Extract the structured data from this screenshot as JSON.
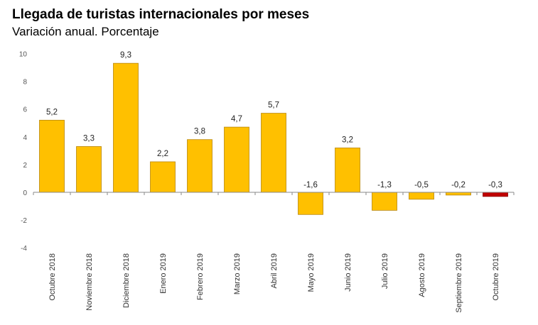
{
  "chart_data": {
    "type": "bar",
    "title": "Llegada de turistas internacionales por meses",
    "subtitle": "Variación anual. Porcentaje",
    "xlabel": "",
    "ylabel": "",
    "ylim": [
      -4,
      10
    ],
    "yticks": [
      -4,
      -2,
      0,
      2,
      4,
      6,
      8,
      10
    ],
    "grid": false,
    "categories": [
      "Octubre 2018",
      "Noviembre 2018",
      "Diciembre 2018",
      "Enero 2019",
      "Febrero 2019",
      "Marzo 2019",
      "Abril 2019",
      "Mayo 2019",
      "Junio 2019",
      "Julio 2019",
      "Agosto 2019",
      "Septiembre 2019",
      "Octubre 2019"
    ],
    "values": [
      5.2,
      3.3,
      9.3,
      2.2,
      3.8,
      4.7,
      5.7,
      -1.6,
      3.2,
      -1.3,
      -0.5,
      -0.2,
      -0.3
    ],
    "data_labels": [
      "5,2",
      "3,3",
      "9,3",
      "2,2",
      "3,8",
      "4,7",
      "5,7",
      "-1,6",
      "3,2",
      "-1,3",
      "-0,5",
      "-0,2",
      "-0,3"
    ],
    "colors": {
      "default": "#FFC000",
      "highlight": "#C00000",
      "bar_border": "#B8860B",
      "axis": "#888888"
    },
    "highlight_index": 12
  }
}
